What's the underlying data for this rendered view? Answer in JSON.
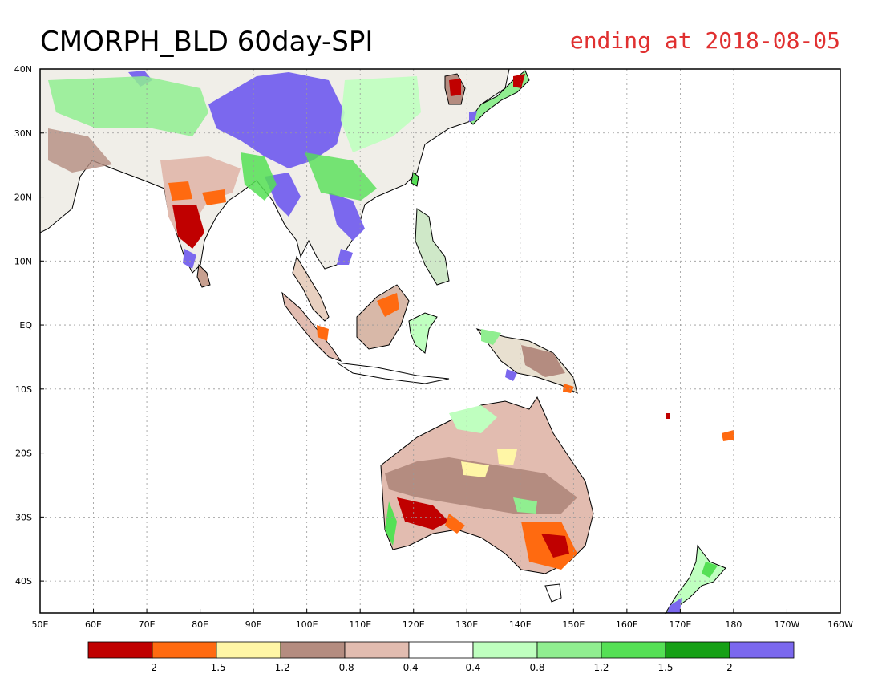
{
  "title": {
    "main": "CMORPH_BLD 60day-SPI",
    "ending": "ending at 2018-08-05"
  },
  "axes": {
    "lat_labels": [
      "40N",
      "30N",
      "20N",
      "10N",
      "EQ",
      "10S",
      "20S",
      "30S",
      "40S"
    ],
    "lat_values": [
      40,
      30,
      20,
      10,
      0,
      -10,
      -20,
      -30,
      -40
    ],
    "lon_labels": [
      "50E",
      "60E",
      "70E",
      "80E",
      "90E",
      "100E",
      "110E",
      "120E",
      "130E",
      "140E",
      "150E",
      "160E",
      "170E",
      "180",
      "170W",
      "160W"
    ],
    "lon_values": [
      50,
      60,
      70,
      80,
      90,
      100,
      110,
      120,
      130,
      140,
      150,
      160,
      170,
      180,
      190,
      200
    ],
    "lon_range": [
      50,
      200
    ],
    "lat_range": [
      -45,
      40
    ],
    "grid": true
  },
  "colorbar": {
    "colors": [
      "#c00000",
      "#ff6a10",
      "#fff6a6",
      "#b48c80",
      "#e2bcb0",
      "#ffffff",
      "#bfffbf",
      "#90ee90",
      "#55e055",
      "#16a016",
      "#7b68ee"
    ],
    "labels": [
      "-2",
      "-1.5",
      "-1.2",
      "-0.8",
      "-0.4",
      "0.4",
      "0.8",
      "1.2",
      "1.5",
      "2"
    ]
  },
  "colors": {
    "title_main": "#000000",
    "title_ending": "#e03030"
  }
}
